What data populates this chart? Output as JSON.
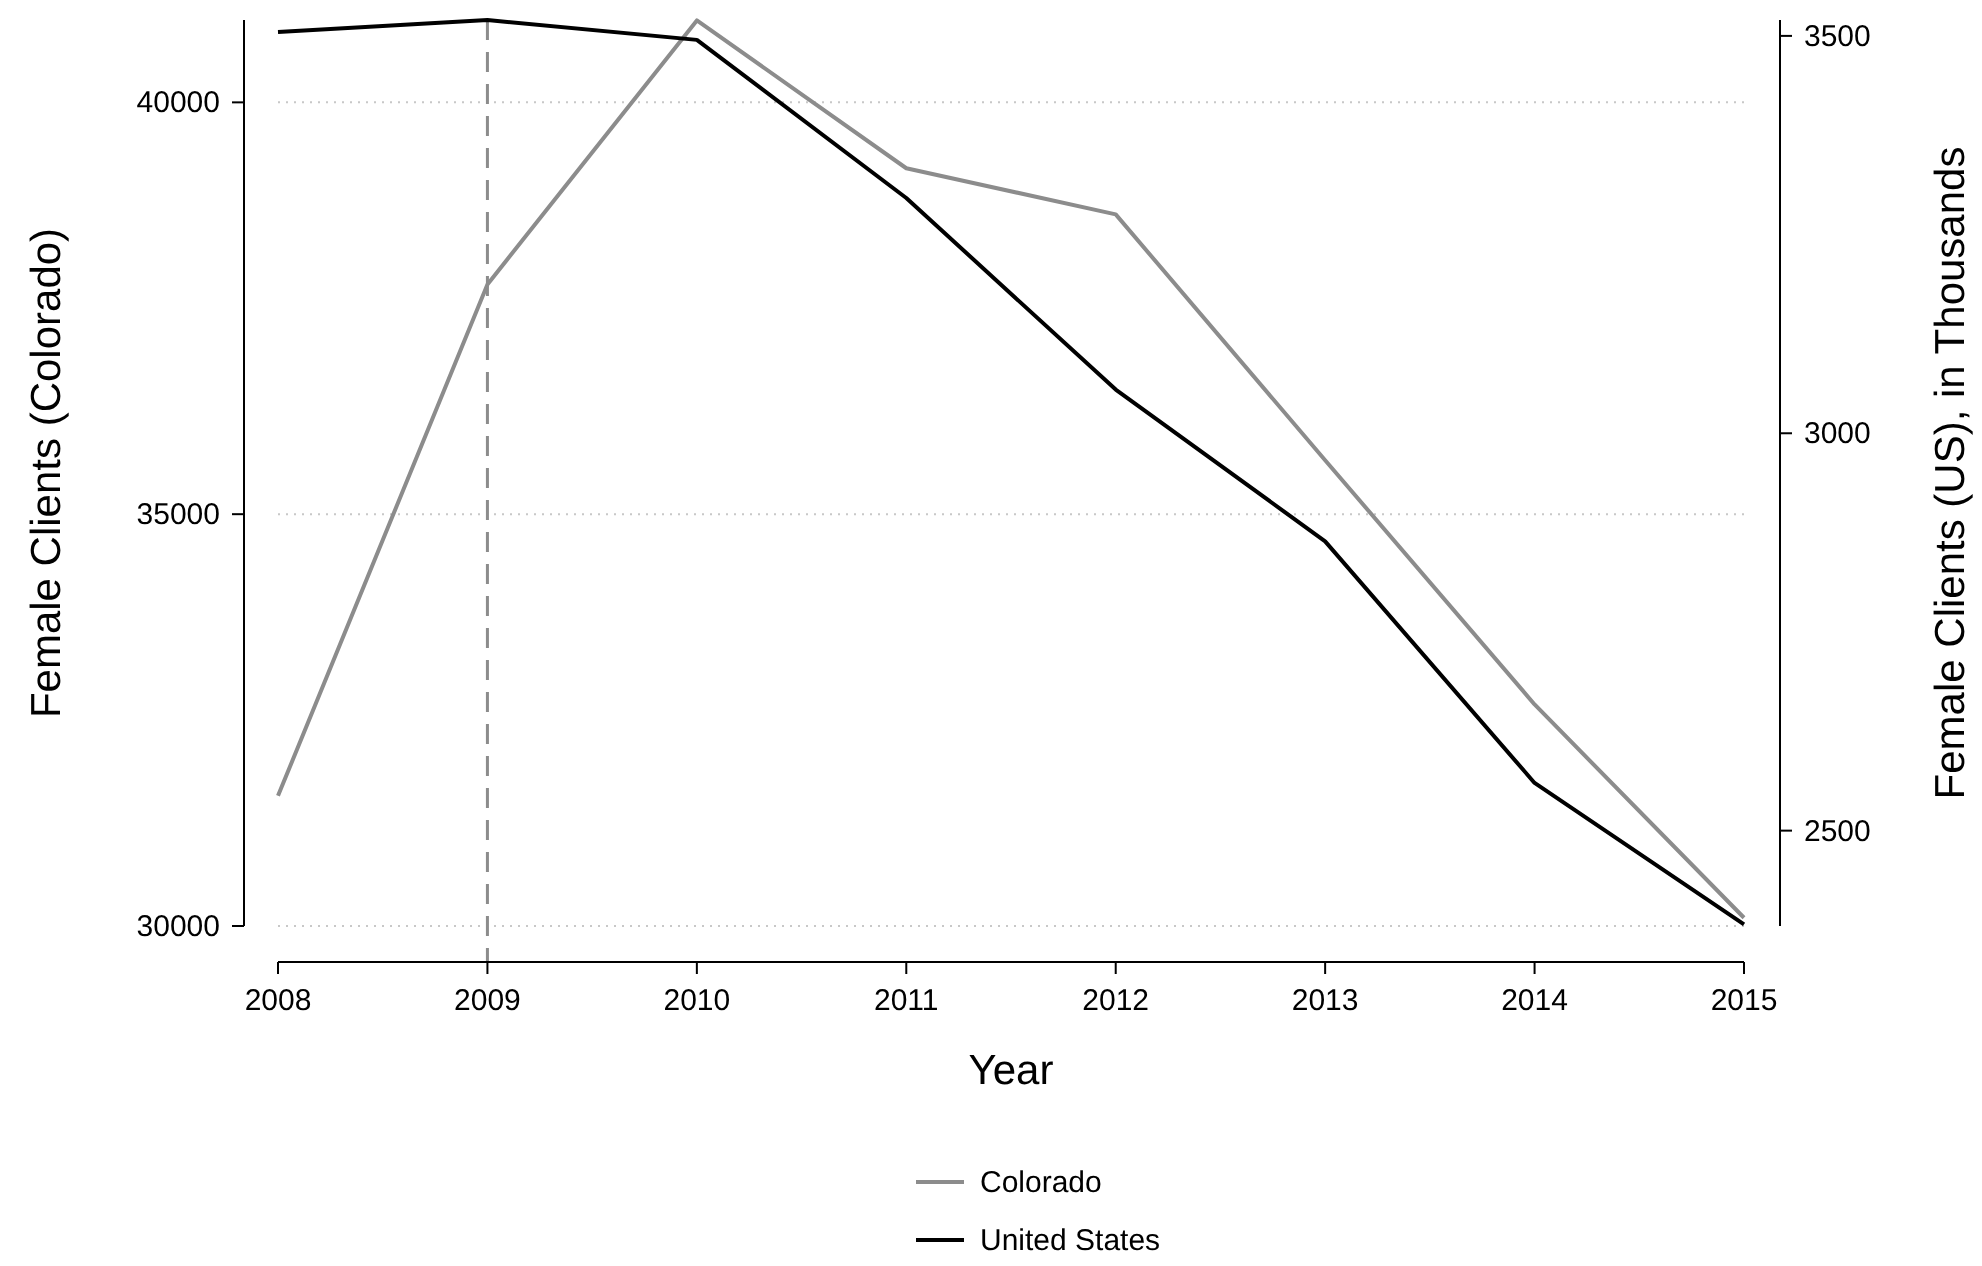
{
  "chart_data": {
    "type": "line",
    "xlabel": "Year",
    "ylabel": "Female Clients (Colorado)",
    "y2label": "Female Clients (US), in Thousands",
    "x": [
      2008,
      2009,
      2010,
      2011,
      2012,
      2013,
      2014,
      2015
    ],
    "series": [
      {
        "name": "Colorado",
        "color": "#8c8c8c",
        "values": [
          31580,
          37790,
          40995,
          39200,
          38640,
          35655,
          32690,
          30100
        ]
      },
      {
        "name": "United States",
        "color": "#000000",
        "axis": "y2",
        "values": [
          3505,
          3520,
          3495,
          3296,
          3055,
          2864,
          2560,
          2382
        ]
      }
    ],
    "xlim": [
      2008,
      2015
    ],
    "xticks": [
      2008,
      2009,
      2010,
      2011,
      2012,
      2013,
      2014,
      2015
    ],
    "ylim": [
      30000,
      41000
    ],
    "yticks": [
      30000,
      35000,
      40000
    ],
    "y2lim": [
      2380,
      3520
    ],
    "y2ticks": [
      2500,
      3000,
      3500
    ],
    "ref_lines": [
      {
        "axis": "x",
        "value": 2009,
        "color": "#8c8c8c",
        "line_style": "dashed"
      }
    ],
    "grid": "y",
    "legend": "bottom",
    "line_style": "solid",
    "marker": "none"
  }
}
